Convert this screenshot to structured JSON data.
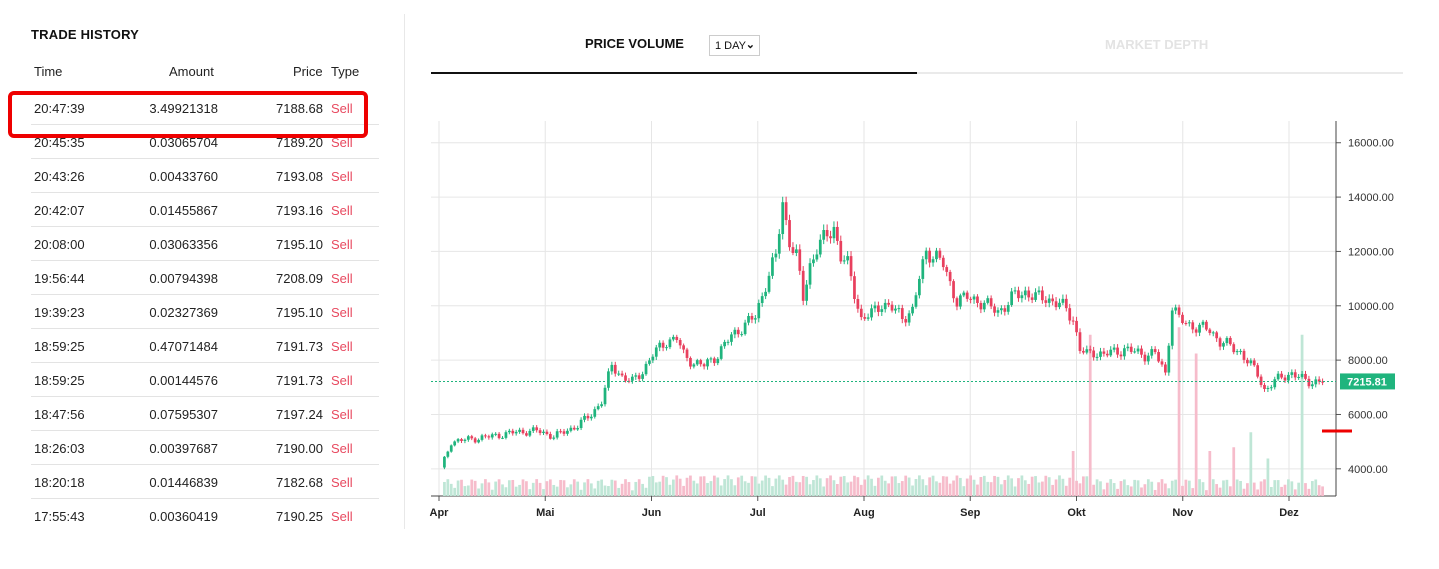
{
  "trade_history": {
    "title": "TRADE HISTORY",
    "columns": {
      "time": "Time",
      "amount": "Amount",
      "price": "Price",
      "type": "Type"
    },
    "rows": [
      {
        "time": "20:47:39",
        "amount": "3.49921318",
        "price": "7188.68",
        "type": "Sell"
      },
      {
        "time": "20:45:35",
        "amount": "0.03065704",
        "price": "7189.20",
        "type": "Sell"
      },
      {
        "time": "20:43:26",
        "amount": "0.00433760",
        "price": "7193.08",
        "type": "Sell"
      },
      {
        "time": "20:42:07",
        "amount": "0.01455867",
        "price": "7193.16",
        "type": "Sell"
      },
      {
        "time": "20:08:00",
        "amount": "0.03063356",
        "price": "7195.10",
        "type": "Sell"
      },
      {
        "time": "19:56:44",
        "amount": "0.00794398",
        "price": "7208.09",
        "type": "Sell"
      },
      {
        "time": "19:39:23",
        "amount": "0.02327369",
        "price": "7195.10",
        "type": "Sell"
      },
      {
        "time": "18:59:25",
        "amount": "0.47071484",
        "price": "7191.73",
        "type": "Sell"
      },
      {
        "time": "18:59:25",
        "amount": "0.00144576",
        "price": "7191.73",
        "type": "Sell"
      },
      {
        "time": "18:47:56",
        "amount": "0.07595307",
        "price": "7197.24",
        "type": "Sell"
      },
      {
        "time": "18:26:03",
        "amount": "0.00397687",
        "price": "7190.00",
        "type": "Sell"
      },
      {
        "time": "18:20:18",
        "amount": "0.01446839",
        "price": "7182.68",
        "type": "Sell"
      },
      {
        "time": "17:55:43",
        "amount": "0.00360419",
        "price": "7190.25",
        "type": "Sell"
      }
    ]
  },
  "tabs": {
    "price_volume": "PRICE VOLUME",
    "interval": "1 DAY",
    "market_depth": "MARKET DEPTH"
  },
  "colors": {
    "up": "#1fb47d",
    "down": "#e8405e",
    "vol_up": "#bfe6d6",
    "vol_down": "#f6bccb",
    "sell": "#e8495f",
    "current_price_bg": "#1fb47d"
  },
  "chart_data": {
    "type": "candlestick",
    "x_tick_labels": [
      "Apr",
      "Mai",
      "Jun",
      "Jul",
      "Aug",
      "Sep",
      "Okt",
      "Nov",
      "Dez"
    ],
    "y_tick_labels": [
      "16000.00",
      "14000.00",
      "12000.00",
      "10000.00",
      "8000.00",
      "6000.00",
      "4000.00"
    ],
    "y_ticks": [
      16000,
      14000,
      12000,
      10000,
      8000,
      6000,
      4000
    ],
    "ylim": [
      3000,
      16800
    ],
    "current_price": "7215.81",
    "current_price_value": 7215.81,
    "close_path": [
      [
        0,
        4000
      ],
      [
        3,
        5000
      ],
      [
        9,
        5100
      ],
      [
        15,
        5200
      ],
      [
        22,
        5350
      ],
      [
        28,
        5400
      ],
      [
        33,
        5200
      ],
      [
        36,
        5350
      ],
      [
        40,
        5600
      ],
      [
        44,
        6000
      ],
      [
        47,
        6500
      ],
      [
        50,
        7800
      ],
      [
        53,
        7400
      ],
      [
        56,
        7200
      ],
      [
        59,
        7600
      ],
      [
        62,
        8200
      ],
      [
        66,
        8700
      ],
      [
        69,
        8800
      ],
      [
        71,
        8200
      ],
      [
        74,
        7900
      ],
      [
        77,
        7800
      ],
      [
        81,
        8200
      ],
      [
        85,
        8900
      ],
      [
        89,
        9300
      ],
      [
        92,
        9600
      ],
      [
        95,
        10800
      ],
      [
        98,
        11800
      ],
      [
        100,
        13800
      ],
      [
        102,
        12400
      ],
      [
        104,
        11800
      ],
      [
        106,
        10300
      ],
      [
        108,
        11500
      ],
      [
        110,
        12100
      ],
      [
        113,
        12600
      ],
      [
        115,
        12900
      ],
      [
        117,
        11800
      ],
      [
        119,
        11500
      ],
      [
        121,
        10500
      ],
      [
        123,
        9500
      ],
      [
        126,
        9700
      ],
      [
        129,
        10100
      ],
      [
        132,
        9900
      ],
      [
        135,
        9600
      ],
      [
        138,
        9800
      ],
      [
        140,
        11000
      ],
      [
        142,
        12000
      ],
      [
        145,
        11800
      ],
      [
        147,
        11500
      ],
      [
        149,
        10800
      ],
      [
        151,
        10200
      ],
      [
        154,
        10300
      ],
      [
        157,
        10200
      ],
      [
        160,
        10000
      ],
      [
        163,
        9800
      ],
      [
        166,
        10100
      ],
      [
        168,
        10400
      ],
      [
        171,
        10500
      ],
      [
        174,
        10300
      ],
      [
        177,
        10300
      ],
      [
        180,
        10100
      ],
      [
        183,
        9900
      ],
      [
        185,
        9500
      ],
      [
        187,
        8400
      ],
      [
        189,
        8200
      ],
      [
        191,
        8300
      ],
      [
        194,
        8200
      ],
      [
        197,
        8300
      ],
      [
        200,
        8400
      ],
      [
        203,
        8300
      ],
      [
        206,
        8200
      ],
      [
        209,
        8250
      ],
      [
        212,
        7500
      ],
      [
        214,
        10000
      ],
      [
        216,
        9500
      ],
      [
        219,
        9300
      ],
      [
        222,
        9200
      ],
      [
        225,
        9100
      ],
      [
        228,
        8700
      ],
      [
        231,
        8500
      ],
      [
        234,
        8300
      ],
      [
        237,
        7800
      ],
      [
        239,
        7500
      ],
      [
        241,
        6900
      ],
      [
        243,
        7100
      ],
      [
        246,
        7400
      ],
      [
        249,
        7500
      ],
      [
        252,
        7300
      ],
      [
        255,
        7200
      ],
      [
        258,
        7210
      ]
    ],
    "volume_spikes": [
      [
        190,
        0.43
      ],
      [
        216,
        0.45
      ],
      [
        221,
        0.38
      ],
      [
        232,
        0.13
      ],
      [
        237,
        0.17
      ],
      [
        252,
        0.43
      ],
      [
        225,
        0.12
      ],
      [
        185,
        0.12
      ],
      [
        242,
        0.1
      ]
    ]
  }
}
